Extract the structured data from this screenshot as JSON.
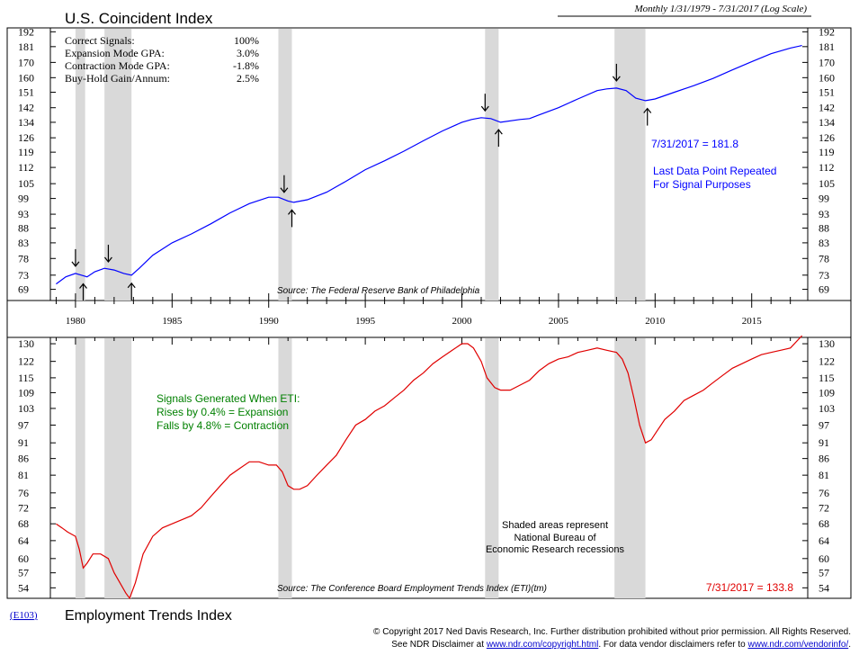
{
  "header": {
    "title": "U.S. Coincident Index",
    "subtitle": "Monthly 1/31/1979 - 7/31/2017 (Log Scale)"
  },
  "footer": {
    "chart_code": "E103",
    "bottom_title": "Employment Trends Index",
    "copyright": "© Copyright 2017 Ned Davis Research, Inc.  Further distribution prohibited without prior permission.  All Rights Reserved.",
    "disclaimer_prefix": "See NDR Disclaimer at ",
    "disclaimer_link1": "www.ndr.com/copyright.html",
    "disclaimer_mid": ". For data vendor disclaimers refer to ",
    "disclaimer_link2": "www.ndr.com/vendorinfo/",
    "disclaimer_suffix": "."
  },
  "colors": {
    "coincident": "#0000ff",
    "eti": "#e00000",
    "recession": "#d9d9d9",
    "signal_text": "#008000"
  },
  "recessions": [
    [
      1980.0,
      1980.5
    ],
    [
      1981.5,
      1982.9
    ],
    [
      1990.5,
      1991.2
    ],
    [
      2001.2,
      2001.9
    ],
    [
      2007.9,
      2009.5
    ]
  ],
  "x_axis": {
    "min": 1978.7,
    "max": 2017.9,
    "ticks": [
      "1980",
      "1985",
      "1990",
      "1995",
      "2000",
      "2005",
      "2010",
      "2015"
    ]
  },
  "chart_data": [
    {
      "type": "line",
      "title": "U.S. Coincident Index",
      "scale": "log",
      "ylim": [
        66,
        195
      ],
      "y_ticks": [
        "69",
        "73",
        "78",
        "83",
        "88",
        "93",
        "99",
        "105",
        "112",
        "119",
        "126",
        "134",
        "142",
        "151",
        "160",
        "170",
        "181",
        "192"
      ],
      "stats": [
        {
          "label": "Correct Signals:",
          "value": "100%"
        },
        {
          "label": "Expansion Mode GPA:",
          "value": "3.0%"
        },
        {
          "label": "Contraction Mode GPA:",
          "value": "-1.8%"
        },
        {
          "label": "Buy-Hold Gain/Annum:",
          "value": "2.5%"
        }
      ],
      "annotation_value": "7/31/2017 = 181.8",
      "annotation_note1": "Last Data Point Repeated",
      "annotation_note2": "For Signal Purposes",
      "source": "Source: The Federal Reserve Bank of Philadelphia",
      "series": [
        {
          "x": [
            1979.0,
            1979.5,
            1980.0,
            1980.3,
            1980.6,
            1981.0,
            1981.5,
            1982.0,
            1982.5,
            1982.9,
            1983.3,
            1984.0,
            1985.0,
            1986.0,
            1987.0,
            1988.0,
            1989.0,
            1990.0,
            1990.5,
            1991.0,
            1991.3,
            1992.0,
            1993.0,
            1994.0,
            1995.0,
            1996.0,
            1997.0,
            1998.0,
            1999.0,
            2000.0,
            2000.5,
            2001.0,
            2001.5,
            2002.0,
            2003.0,
            2003.5,
            2004.0,
            2005.0,
            2006.0,
            2007.0,
            2007.5,
            2008.0,
            2008.5,
            2009.0,
            2009.5,
            2010.0,
            2011.0,
            2012.0,
            2013.0,
            2014.0,
            2015.0,
            2016.0,
            2017.0,
            2017.6
          ],
          "y": [
            70.5,
            72.5,
            73.5,
            73.0,
            72.5,
            74.0,
            75.0,
            74.5,
            73.5,
            73.0,
            75.0,
            79.0,
            83.0,
            86.0,
            89.5,
            93.5,
            97.0,
            99.5,
            99.5,
            98.0,
            97.5,
            98.5,
            101.5,
            106.0,
            111.0,
            115.0,
            119.5,
            124.5,
            129.5,
            134.0,
            135.5,
            136.5,
            136.0,
            134.0,
            135.5,
            136.0,
            138.0,
            142.0,
            147.0,
            152.0,
            153.0,
            153.5,
            152.0,
            147.5,
            146.0,
            147.0,
            151.0,
            155.0,
            159.5,
            165.0,
            170.5,
            176.0,
            180.0,
            181.8
          ]
        }
      ],
      "signals": [
        {
          "x": 1980.0,
          "dir": "down"
        },
        {
          "x": 1980.4,
          "dir": "up"
        },
        {
          "x": 1981.7,
          "dir": "down"
        },
        {
          "x": 1982.9,
          "dir": "up"
        },
        {
          "x": 1990.8,
          "dir": "down"
        },
        {
          "x": 1991.2,
          "dir": "up"
        },
        {
          "x": 2001.2,
          "dir": "down"
        },
        {
          "x": 2001.9,
          "dir": "up"
        },
        {
          "x": 2008.0,
          "dir": "down"
        },
        {
          "x": 2009.6,
          "dir": "up"
        }
      ]
    },
    {
      "type": "line",
      "title": "Employment Trends Index",
      "scale": "log",
      "ylim": [
        52,
        133
      ],
      "y_ticks": [
        "54",
        "57",
        "60",
        "64",
        "68",
        "72",
        "76",
        "81",
        "86",
        "91",
        "97",
        "103",
        "109",
        "115",
        "122",
        "130"
      ],
      "signal_note1": "Signals Generated When ETI:",
      "signal_note2": "Rises by 0.4% = Expansion",
      "signal_note3": "Falls by 4.8% = Contraction",
      "recession_note1": "Shaded areas represent",
      "recession_note2": "National Bureau of",
      "recession_note3": "Economic Research recessions",
      "source": "Source: The Conference Board Employment Trends Index (ETI)(tm)",
      "annotation_value": "7/31/2017 = 133.8",
      "series": [
        {
          "x": [
            1979.0,
            1979.3,
            1979.6,
            1980.0,
            1980.2,
            1980.4,
            1980.6,
            1980.9,
            1981.3,
            1981.7,
            1982.0,
            1982.3,
            1982.6,
            1982.8,
            1983.1,
            1983.5,
            1984.0,
            1984.5,
            1985.0,
            1985.5,
            1986.0,
            1986.5,
            1987.0,
            1987.5,
            1988.0,
            1988.5,
            1989.0,
            1989.5,
            1990.0,
            1990.4,
            1990.7,
            1991.0,
            1991.3,
            1991.6,
            1992.0,
            1992.5,
            1993.0,
            1993.5,
            1994.0,
            1994.5,
            1995.0,
            1995.5,
            1996.0,
            1996.5,
            1997.0,
            1997.5,
            1998.0,
            1998.5,
            1999.0,
            1999.5,
            2000.0,
            2000.3,
            2000.6,
            2001.0,
            2001.3,
            2001.7,
            2002.0,
            2002.5,
            2003.0,
            2003.5,
            2004.0,
            2004.5,
            2005.0,
            2005.5,
            2006.0,
            2006.5,
            2007.0,
            2007.5,
            2008.0,
            2008.3,
            2008.6,
            2008.9,
            2009.2,
            2009.5,
            2009.8,
            2010.1,
            2010.5,
            2011.0,
            2011.5,
            2012.0,
            2012.5,
            2013.0,
            2013.5,
            2014.0,
            2014.5,
            2015.0,
            2015.5,
            2016.0,
            2016.5,
            2017.0,
            2017.6
          ],
          "y": [
            68,
            67,
            66,
            65,
            62,
            58,
            59,
            61,
            61,
            60,
            57,
            55,
            53,
            52,
            55,
            61,
            65,
            67,
            68,
            69,
            70,
            72,
            75,
            78,
            81,
            83,
            85,
            85,
            84,
            84,
            82,
            78,
            77,
            77,
            78,
            81,
            84,
            87,
            92,
            97,
            99,
            102,
            104,
            107,
            110,
            114,
            117,
            121,
            124,
            127,
            130,
            130,
            128,
            122,
            115,
            111,
            110,
            110,
            112,
            114,
            118,
            121,
            123,
            124,
            126,
            127,
            128,
            127,
            126,
            123,
            117,
            107,
            97,
            91,
            92,
            95,
            99,
            102,
            106,
            108,
            110,
            113,
            116,
            119,
            121,
            123,
            125,
            126,
            127,
            128,
            133.8
          ]
        }
      ]
    }
  ]
}
